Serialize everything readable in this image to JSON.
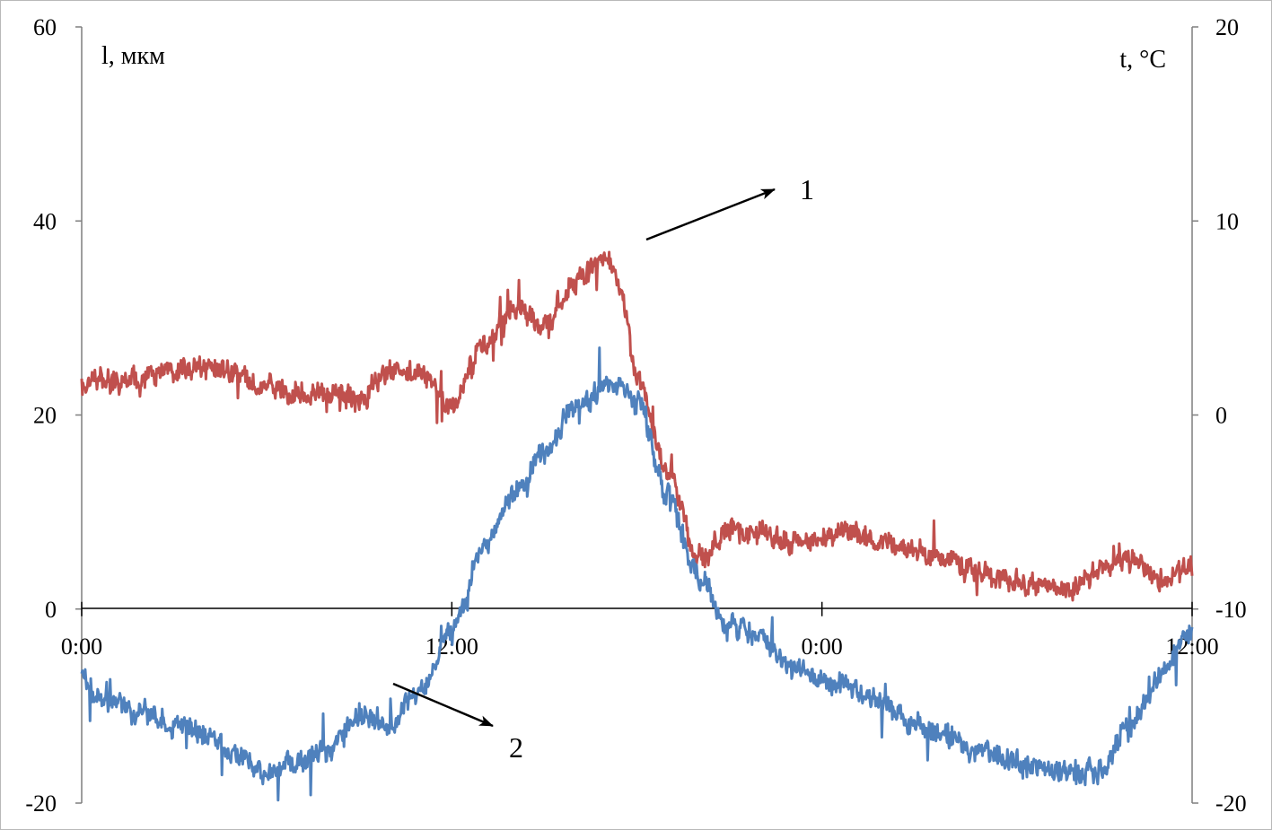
{
  "chart_data": {
    "type": "line",
    "title": "",
    "xlabel": "",
    "left_axis": {
      "label": "l, мкм",
      "ylim": [
        -20,
        60
      ],
      "ticks": [
        "-20",
        "0",
        "20",
        "40",
        "60"
      ]
    },
    "right_axis": {
      "label": "t, °C",
      "ylim": [
        -20,
        20
      ],
      "ticks": [
        "-20",
        "-10",
        "0",
        "10",
        "20"
      ]
    },
    "x_axis": {
      "unit": "hours",
      "xlim": [
        0,
        36
      ],
      "tick_hours": [
        0,
        12,
        24,
        36
      ],
      "tick_labels": [
        "0:00",
        "12:00",
        "0:00",
        "12:00"
      ]
    },
    "grid": false,
    "legend": "none",
    "series": [
      {
        "name": "1",
        "axis": "left",
        "color": "#c0504d",
        "x": [
          0,
          0.5,
          1,
          2,
          3,
          4,
          5,
          6,
          7,
          8,
          9,
          10,
          11,
          12,
          13,
          14,
          15,
          16,
          17,
          17.5,
          18,
          19,
          20,
          21,
          22,
          23,
          24,
          25,
          26,
          27,
          28,
          29,
          30,
          31,
          32,
          33,
          34,
          35,
          36
        ],
        "values": [
          23,
          24,
          23.5,
          24,
          24.5,
          25,
          24,
          23,
          22,
          22.5,
          21.5,
          25,
          24,
          21,
          27,
          31,
          29,
          34,
          36,
          33,
          24,
          14,
          5,
          8,
          7.5,
          7,
          7.5,
          8,
          7,
          6,
          5,
          4,
          3,
          2.5,
          2,
          4,
          5,
          3,
          4
        ]
      },
      {
        "name": "2",
        "axis": "right",
        "color": "#4f81bd",
        "x": [
          0,
          0.5,
          1,
          2,
          3,
          4,
          5,
          6,
          7,
          8,
          9,
          10,
          11,
          12,
          13,
          14,
          15,
          16,
          17,
          17.5,
          18,
          19,
          20,
          21,
          22,
          23,
          24,
          25,
          26,
          27,
          28,
          29,
          30,
          31,
          32,
          33,
          34,
          35,
          36
        ],
        "values": [
          -13.5,
          -14.5,
          -14.8,
          -15.5,
          -16,
          -16.5,
          -17.5,
          -18.5,
          -18,
          -17.2,
          -15.5,
          -16,
          -14,
          -11,
          -7,
          -4,
          -2,
          0.5,
          1.5,
          1.6,
          0.5,
          -4,
          -8.5,
          -11,
          -11.5,
          -13,
          -13.8,
          -14,
          -15,
          -16,
          -16.5,
          -17.3,
          -17.8,
          -18.2,
          -18.5,
          -18.4,
          -16,
          -13.5,
          -11
        ]
      }
    ],
    "annotations": [
      {
        "label": "1",
        "points_to": "series 1"
      },
      {
        "label": "2",
        "points_to": "series 2"
      }
    ]
  }
}
